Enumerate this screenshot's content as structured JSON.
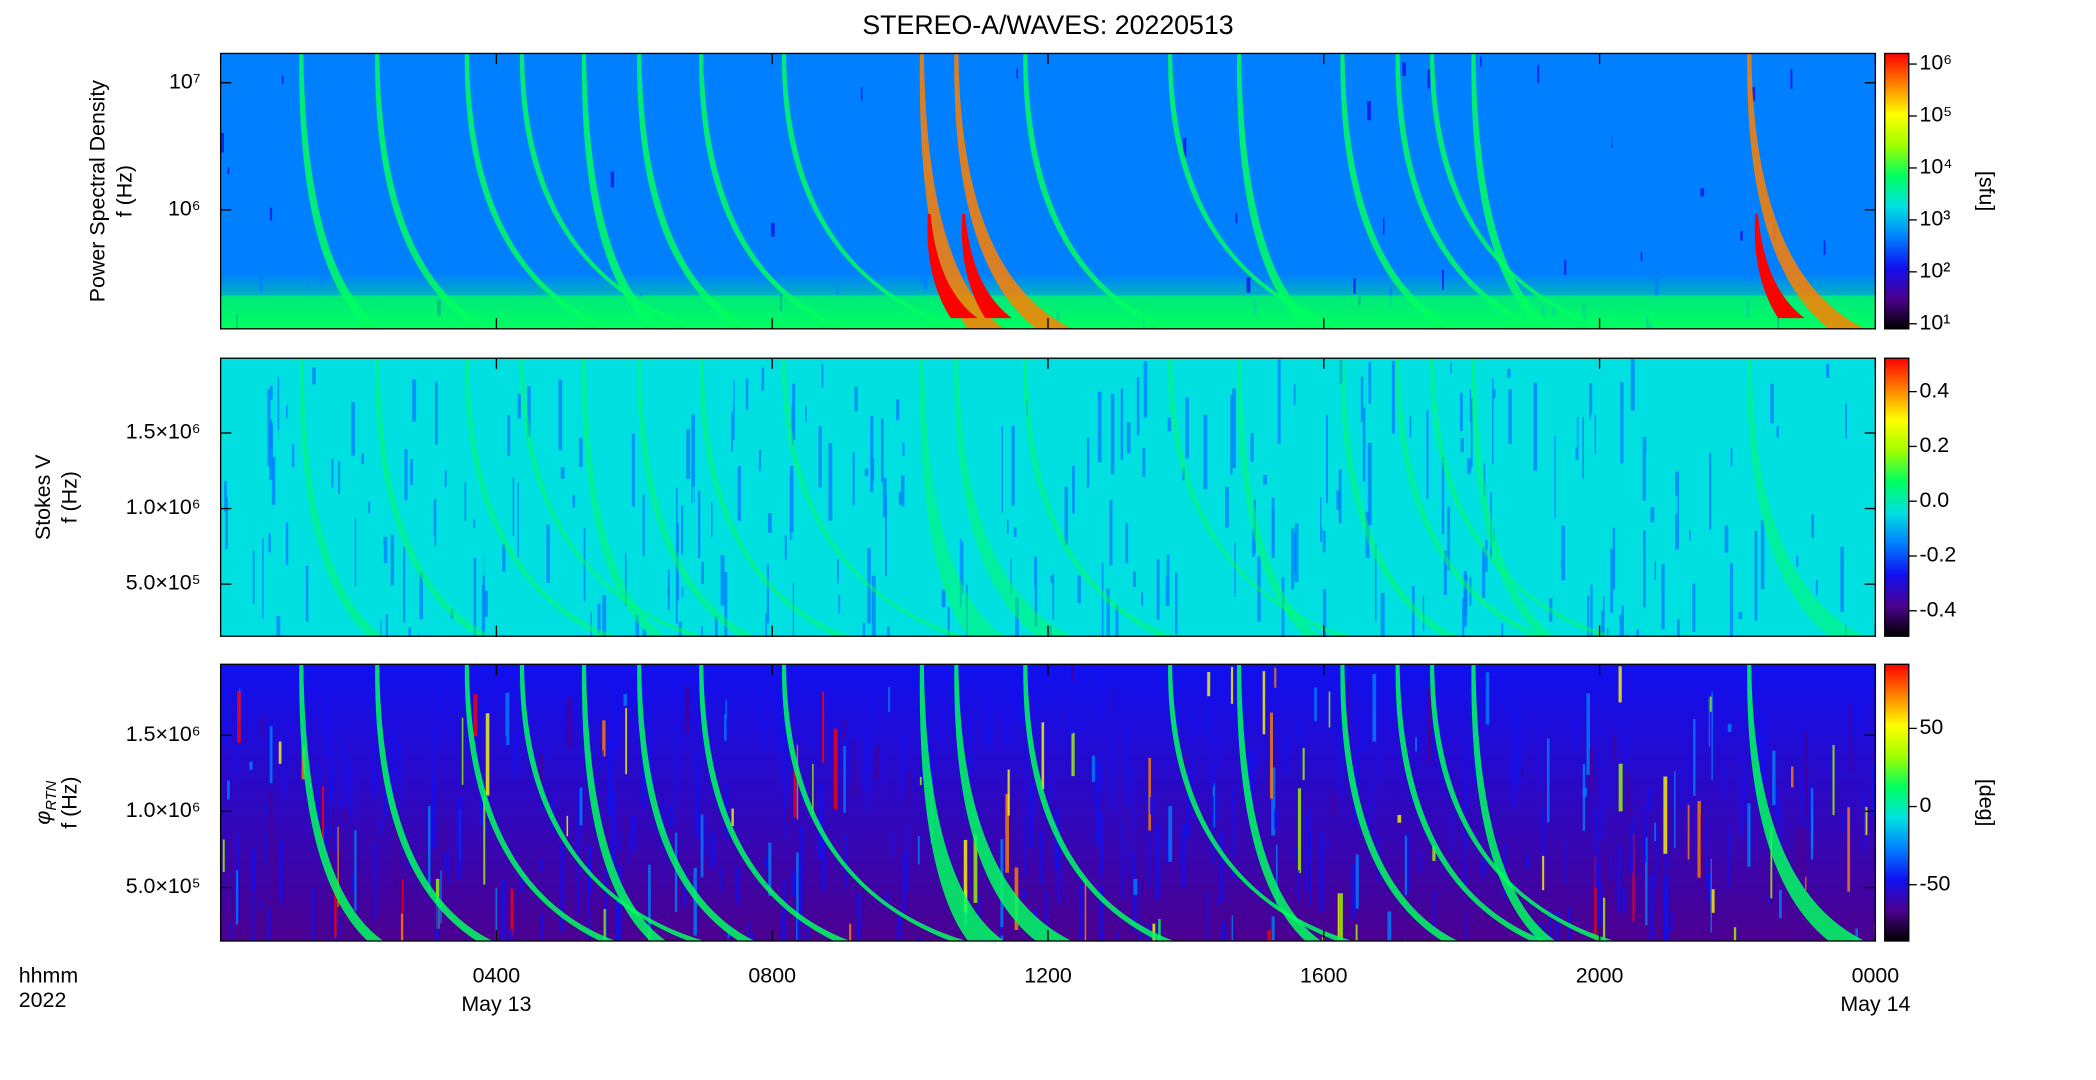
{
  "chart_data": [
    {
      "type": "heatmap",
      "title": "STEREO-A/WAVES: 20220513",
      "ylabel": "Power Spectral Density",
      "ylabel2": "f (Hz)",
      "ylog": true,
      "ylim": [
        116000,
        17000000
      ],
      "yticks": [
        {
          "value": 10000000,
          "label": "10⁷"
        },
        {
          "value": 1000000,
          "label": "10⁶"
        }
      ],
      "clog": true,
      "clim": [
        8,
        1600000
      ],
      "cticks": [
        {
          "value": 1000000,
          "label": "10⁶"
        },
        {
          "value": 100000,
          "label": "10⁵"
        },
        {
          "value": 10000,
          "label": "10⁴"
        },
        {
          "value": 1000,
          "label": "10³"
        },
        {
          "value": 100,
          "label": "10²"
        },
        {
          "value": 10,
          "label": "10¹"
        }
      ],
      "clabel": "[sfu]"
    },
    {
      "type": "heatmap",
      "ylabel": "Stokes V",
      "ylabel2": "f (Hz)",
      "ylog": false,
      "ylim": [
        155000,
        1995000
      ],
      "yticks": [
        {
          "value": 1500000,
          "label": "1.5×10⁶"
        },
        {
          "value": 1000000,
          "label": "1.0×10⁶"
        },
        {
          "value": 500000,
          "label": "5.0×10⁵"
        }
      ],
      "clog": false,
      "clim": [
        -0.493,
        0.522
      ],
      "cticks": [
        0.4,
        0.2,
        {
          "value": 0,
          "label": "0.0"
        },
        -0.2,
        -0.4
      ]
    },
    {
      "type": "heatmap",
      "ylabel": "φ",
      "ylabel_sub": "RTN",
      "ylabel2": "f (Hz)",
      "ylog": false,
      "ylim": [
        149000,
        1965000
      ],
      "yticks": [
        {
          "value": 1500000,
          "label": "1.5×10⁶"
        },
        {
          "value": 1000000,
          "label": "1.0×10⁶"
        },
        {
          "value": 500000,
          "label": "5.0×10⁵"
        }
      ],
      "clog": false,
      "clim": [
        -86,
        91
      ],
      "cticks": [
        50,
        0,
        -50
      ],
      "clabel": "[deg]",
      "xlabel": "hhmm",
      "xlabel2": "2022",
      "xlim": [
        0,
        24
      ],
      "xticks": [
        {
          "value": 4,
          "label": "0400"
        },
        {
          "value": 8,
          "label": "0800"
        },
        {
          "value": 12,
          "label": "1200"
        },
        {
          "value": 16,
          "label": "1600"
        },
        {
          "value": 20,
          "label": "2000"
        },
        {
          "value": 24,
          "label": "0000"
        }
      ],
      "x_sublabels": [
        {
          "value": 4,
          "label": "May 13"
        },
        {
          "value": 24,
          "label": "May 14"
        }
      ]
    }
  ],
  "colormap": [
    "#000000",
    "#4b0090",
    "#1010f0",
    "#0080ff",
    "#00e0e0",
    "#00ff60",
    "#a0ff00",
    "#ffff00",
    "#ff8000",
    "#ff0000"
  ]
}
